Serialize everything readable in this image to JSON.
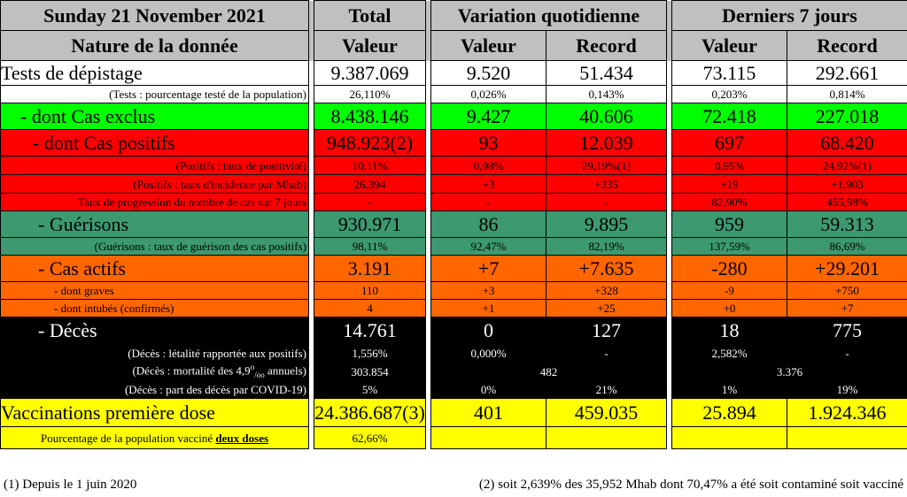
{
  "header": {
    "date": "Sunday 21 November 2021",
    "total": "Total",
    "variation": "Variation quotidienne",
    "last7": "Derniers 7 jours",
    "nature": "Nature de la donnée",
    "valeur": "Valeur",
    "record": "Record"
  },
  "rows": {
    "tests": {
      "label": "Tests de dépistage",
      "total": "9.387.069",
      "dv": "9.520",
      "dr": "51.434",
      "wv": "73.115",
      "wr": "292.661"
    },
    "tests_pct": {
      "label": "(Tests : pourcentage testé de la population)",
      "total": "26,110%",
      "dv": "0,026%",
      "dr": "0,143%",
      "wv": "0,203%",
      "wr": "0,814%"
    },
    "exclus": {
      "label": "- dont Cas exclus",
      "total": "8.438.146",
      "dv": "9.427",
      "dr": "40.606",
      "wv": "72.418",
      "wr": "227.018"
    },
    "positifs": {
      "label": "- dont Cas positifs",
      "total": "948.923(2)",
      "dv": "93",
      "dr": "12.039",
      "wv": "697",
      "wr": "68.420"
    },
    "pos_taux": {
      "label": "(Positifs : taux de positivité)",
      "total": "10,11%",
      "dv": "0,98%",
      "dr": "29,19%(1)",
      "wv": "0,95%",
      "wr": "24,92%(1)"
    },
    "pos_incid": {
      "label": "(Positifs : taux d'incidence par Mhab)",
      "total": "26.394",
      "dv": "+3",
      "dr": "+335",
      "wv": "+19",
      "wr": "+1.903"
    },
    "pos_prog": {
      "label": "Taux de progression du nombre de cas sur 7 jours",
      "total": "-",
      "dv": "-",
      "dr": "-",
      "wv": "82,90%",
      "wr": "455,98%"
    },
    "guerisons": {
      "label": "- Guérisons",
      "total": "930.971",
      "dv": "86",
      "dr": "9.895",
      "wv": "959",
      "wr": "59.313"
    },
    "guer_taux": {
      "label": "(Guérisons : taux de guérison des cas positifs)",
      "total": "98,11%",
      "dv": "92,47%",
      "dr": "82,19%",
      "wv": "137,59%",
      "wr": "86,69%"
    },
    "actifs": {
      "label": "- Cas actifs",
      "total": "3.191",
      "dv": "+7",
      "dr": "+7.635",
      "wv": "-280",
      "wr": "+29.201"
    },
    "graves": {
      "label": "- dont graves",
      "total": "110",
      "dv": "+3",
      "dr": "+328",
      "wv": "-9",
      "wr": "+750"
    },
    "intubes": {
      "label": "- dont intubés (confirmés)",
      "total": "4",
      "dv": "+1",
      "dr": "+25",
      "wv": "+0",
      "wr": "+7"
    },
    "deces": {
      "label": "- Décès",
      "total": "14.761",
      "dv": "0",
      "dr": "127",
      "wv": "18",
      "wr": "775"
    },
    "dec_leta": {
      "label": "(Décès : létalité rapportée aux positifs)",
      "total": "1,556%",
      "dv": "0,000%",
      "dr": "-",
      "wv": "2,582%",
      "wr": "-"
    },
    "dec_mort": {
      "label_pre": "(Décès : mortalité des 4,9",
      "label_sup": "o",
      "label_sub": "/oo",
      "label_post": " annuels)",
      "total": "303.854",
      "d": "482",
      "w": "3.376"
    },
    "dec_part": {
      "label": "(Décès : part des décès par COVID-19)",
      "total": "5%",
      "dv": "0%",
      "dr": "21%",
      "wv": "1%",
      "wr": "19%"
    },
    "vacc": {
      "label": "Vaccinations première dose",
      "total": "24.386.687(3)",
      "dv": "401",
      "dr": "459.035",
      "wv": "25.894",
      "wr": "1.924.346"
    },
    "vacc_pct": {
      "label_pre": "Pourcentage de la population vacciné ",
      "label_em": "deux doses",
      "total": "62,66%"
    }
  },
  "footnotes": {
    "f1": "(1) Depuis le 1 juin 2020",
    "f2": "(2) soit 2,639% des 35,952 Mhab dont 70,47% a été soit contaminé soit vacciné"
  },
  "colors": {
    "grey": "#c0c0c0",
    "green": "#00ff00",
    "red": "#ff0000",
    "teal": "#3d9970",
    "orange": "#ff6600",
    "black": "#000000",
    "yellow": "#ffff00"
  }
}
